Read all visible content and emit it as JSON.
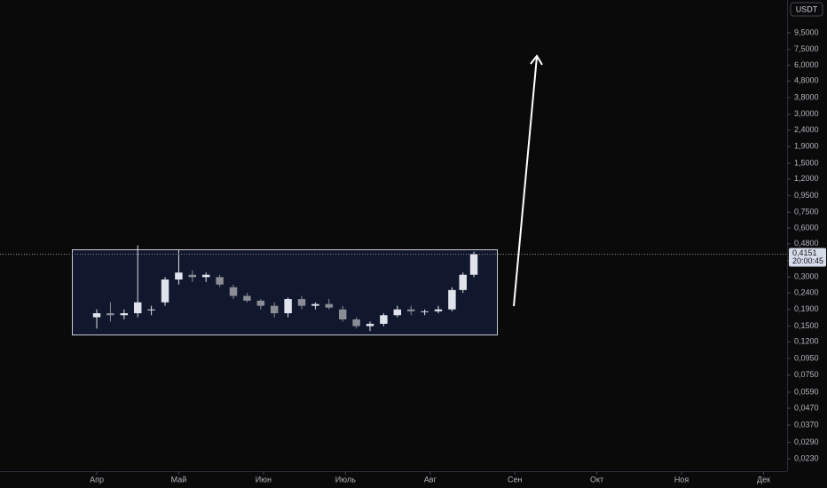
{
  "chart_data": {
    "type": "candlestick",
    "currency": "USDT",
    "last_price_label": "0,4151",
    "countdown": "20:00:45",
    "log_scale": true,
    "grid": false,
    "up_color": "#e0e3eb",
    "down_color": "#8a8d96",
    "x": [
      0,
      5,
      10,
      15,
      20,
      25,
      30,
      35,
      40,
      45,
      50,
      55,
      60,
      65,
      70,
      75,
      80,
      85,
      90,
      95,
      100,
      105,
      110,
      115,
      120,
      125,
      130,
      134,
      138
    ],
    "open": [
      0.17,
      0.18,
      0.175,
      0.18,
      0.19,
      0.21,
      0.29,
      0.31,
      0.3,
      0.3,
      0.26,
      0.23,
      0.215,
      0.2,
      0.18,
      0.22,
      0.2,
      0.205,
      0.19,
      0.165,
      0.15,
      0.155,
      0.175,
      0.19,
      0.185,
      0.185,
      0.19,
      0.25,
      0.31
    ],
    "high": [
      0.19,
      0.21,
      0.19,
      0.47,
      0.2,
      0.3,
      0.44,
      0.33,
      0.32,
      0.31,
      0.27,
      0.24,
      0.22,
      0.21,
      0.225,
      0.23,
      0.21,
      0.22,
      0.2,
      0.17,
      0.16,
      0.18,
      0.2,
      0.2,
      0.19,
      0.2,
      0.26,
      0.32,
      0.43
    ],
    "low": [
      0.145,
      0.16,
      0.165,
      0.17,
      0.175,
      0.2,
      0.27,
      0.28,
      0.28,
      0.26,
      0.22,
      0.21,
      0.19,
      0.17,
      0.17,
      0.19,
      0.19,
      0.19,
      0.16,
      0.145,
      0.14,
      0.15,
      0.17,
      0.175,
      0.175,
      0.18,
      0.185,
      0.24,
      0.3
    ],
    "close": [
      0.18,
      0.175,
      0.18,
      0.21,
      0.19,
      0.29,
      0.32,
      0.3,
      0.31,
      0.27,
      0.23,
      0.215,
      0.2,
      0.18,
      0.22,
      0.2,
      0.205,
      0.195,
      0.165,
      0.15,
      0.155,
      0.175,
      0.19,
      0.185,
      0.185,
      0.19,
      0.25,
      0.31,
      0.4151
    ],
    "xlim": [
      -35.4,
      252.6
    ],
    "xticks": [
      {
        "value": 0,
        "label": "Апр"
      },
      {
        "value": 30,
        "label": "Май"
      },
      {
        "value": 61,
        "label": "Июн"
      },
      {
        "value": 91,
        "label": "Июль"
      },
      {
        "value": 122,
        "label": "Авг"
      },
      {
        "value": 153,
        "label": "Сен"
      },
      {
        "value": 183,
        "label": "Окт"
      },
      {
        "value": 214,
        "label": "Ноя"
      },
      {
        "value": 244,
        "label": "Дек"
      }
    ],
    "ylim": [
      0.0193,
      15.1
    ],
    "yticks": [
      {
        "value": 9.5,
        "label": "9,5000"
      },
      {
        "value": 7.5,
        "label": "7,5000"
      },
      {
        "value": 6.0,
        "label": "6,0000"
      },
      {
        "value": 4.8,
        "label": "4,8000"
      },
      {
        "value": 3.8,
        "label": "3,8000"
      },
      {
        "value": 3.0,
        "label": "3,0000"
      },
      {
        "value": 2.4,
        "label": "2,4000"
      },
      {
        "value": 1.9,
        "label": "1,9000"
      },
      {
        "value": 1.5,
        "label": "1,5000"
      },
      {
        "value": 1.2,
        "label": "1,2000"
      },
      {
        "value": 0.95,
        "label": "0,9500"
      },
      {
        "value": 0.75,
        "label": "0,7500"
      },
      {
        "value": 0.6,
        "label": "0,6000"
      },
      {
        "value": 0.48,
        "label": "0,4800"
      },
      {
        "value": 0.38,
        "label": "0,3800"
      },
      {
        "value": 0.3,
        "label": "0,3000"
      },
      {
        "value": 0.24,
        "label": "0,2400"
      },
      {
        "value": 0.19,
        "label": "0,1900"
      },
      {
        "value": 0.15,
        "label": "0,1500"
      },
      {
        "value": 0.12,
        "label": "0,1200"
      },
      {
        "value": 0.095,
        "label": "0,0950"
      },
      {
        "value": 0.075,
        "label": "0,0750"
      },
      {
        "value": 0.059,
        "label": "0,0590"
      },
      {
        "value": 0.047,
        "label": "0,0470"
      },
      {
        "value": 0.037,
        "label": "0,0370"
      },
      {
        "value": 0.029,
        "label": "0,0290"
      },
      {
        "value": 0.023,
        "label": "0,0230"
      }
    ]
  }
}
